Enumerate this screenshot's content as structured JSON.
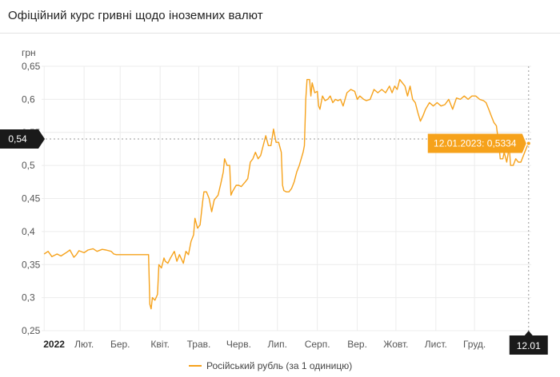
{
  "header": {
    "title": "Офіційний курс гривні щодо іноземних валют"
  },
  "colors": {
    "series": "#f6a21b",
    "tooltip_bg": "#f6a21b",
    "flag_bg": "#1a1a1a",
    "grid": "#ececec"
  },
  "chart_data": {
    "type": "line",
    "ylabel": "грн",
    "ylim": [
      0.25,
      0.65
    ],
    "yticks": [
      0.25,
      0.3,
      0.35,
      0.4,
      0.45,
      0.5,
      0.55,
      0.6,
      0.65
    ],
    "ytick_labels": [
      "0,25",
      "0,3",
      "0,35",
      "0,4",
      "0,45",
      "0,5",
      "0,55",
      "0,6",
      "0,65"
    ],
    "xlim": [
      "2021-12-30",
      "2023-01-14"
    ],
    "xticks": [
      "2022-01-01",
      "2022-02-01",
      "2022-03-01",
      "2022-04-01",
      "2022-05-01",
      "2022-06-01",
      "2022-07-01",
      "2022-08-01",
      "2022-09-01",
      "2022-10-01",
      "2022-11-01",
      "2022-12-01"
    ],
    "xtick_labels": [
      "2022",
      "Лют.",
      "Бер.",
      "Квіт.",
      "Трав.",
      "Черв.",
      "Лип.",
      "Серп.",
      "Вер.",
      "Жовт.",
      "Лист.",
      "Груд."
    ],
    "grid": true,
    "legend": "bottom",
    "series": [
      {
        "name": "Російський рубль (за 1 одиницю)",
        "color": "#f6a21b",
        "points": [
          [
            "2022-01-01",
            0.366
          ],
          [
            "2022-01-04",
            0.37
          ],
          [
            "2022-01-07",
            0.362
          ],
          [
            "2022-01-11",
            0.366
          ],
          [
            "2022-01-14",
            0.363
          ],
          [
            "2022-01-18",
            0.368
          ],
          [
            "2022-01-21",
            0.372
          ],
          [
            "2022-01-24",
            0.361
          ],
          [
            "2022-01-26",
            0.365
          ],
          [
            "2022-01-28",
            0.371
          ],
          [
            "2022-02-01",
            0.368
          ],
          [
            "2022-02-04",
            0.372
          ],
          [
            "2022-02-08",
            0.374
          ],
          [
            "2022-02-11",
            0.37
          ],
          [
            "2022-02-15",
            0.373
          ],
          [
            "2022-02-18",
            0.372
          ],
          [
            "2022-02-22",
            0.37
          ],
          [
            "2022-02-24",
            0.366
          ],
          [
            "2022-02-26",
            0.365
          ],
          [
            "2022-03-01",
            0.365
          ],
          [
            "2022-03-10",
            0.365
          ],
          [
            "2022-03-20",
            0.365
          ],
          [
            "2022-03-23",
            0.365
          ],
          [
            "2022-03-24",
            0.29
          ],
          [
            "2022-03-25",
            0.283
          ],
          [
            "2022-03-26",
            0.3
          ],
          [
            "2022-03-28",
            0.296
          ],
          [
            "2022-03-30",
            0.305
          ],
          [
            "2022-03-31",
            0.35
          ],
          [
            "2022-04-02",
            0.345
          ],
          [
            "2022-04-04",
            0.36
          ],
          [
            "2022-04-05",
            0.355
          ],
          [
            "2022-04-07",
            0.352
          ],
          [
            "2022-04-09",
            0.36
          ],
          [
            "2022-04-12",
            0.37
          ],
          [
            "2022-04-14",
            0.355
          ],
          [
            "2022-04-16",
            0.365
          ],
          [
            "2022-04-19",
            0.352
          ],
          [
            "2022-04-21",
            0.37
          ],
          [
            "2022-04-23",
            0.365
          ],
          [
            "2022-04-25",
            0.385
          ],
          [
            "2022-04-27",
            0.395
          ],
          [
            "2022-04-28",
            0.42
          ],
          [
            "2022-04-30",
            0.405
          ],
          [
            "2022-05-02",
            0.41
          ],
          [
            "2022-05-04",
            0.445
          ],
          [
            "2022-05-05",
            0.46
          ],
          [
            "2022-05-07",
            0.46
          ],
          [
            "2022-05-09",
            0.45
          ],
          [
            "2022-05-11",
            0.43
          ],
          [
            "2022-05-13",
            0.448
          ],
          [
            "2022-05-16",
            0.455
          ],
          [
            "2022-05-18",
            0.472
          ],
          [
            "2022-05-20",
            0.49
          ],
          [
            "2022-05-21",
            0.51
          ],
          [
            "2022-05-23",
            0.5
          ],
          [
            "2022-05-25",
            0.5
          ],
          [
            "2022-05-26",
            0.455
          ],
          [
            "2022-05-27",
            0.46
          ],
          [
            "2022-05-30",
            0.47
          ],
          [
            "2022-06-01",
            0.47
          ],
          [
            "2022-06-03",
            0.468
          ],
          [
            "2022-06-06",
            0.475
          ],
          [
            "2022-06-08",
            0.48
          ],
          [
            "2022-06-10",
            0.505
          ],
          [
            "2022-06-12",
            0.51
          ],
          [
            "2022-06-14",
            0.52
          ],
          [
            "2022-06-16",
            0.51
          ],
          [
            "2022-06-18",
            0.515
          ],
          [
            "2022-06-20",
            0.53
          ],
          [
            "2022-06-22",
            0.545
          ],
          [
            "2022-06-24",
            0.53
          ],
          [
            "2022-06-26",
            0.53
          ],
          [
            "2022-06-28",
            0.555
          ],
          [
            "2022-06-30",
            0.535
          ],
          [
            "2022-07-02",
            0.535
          ],
          [
            "2022-07-04",
            0.52
          ],
          [
            "2022-07-05",
            0.47
          ],
          [
            "2022-07-06",
            0.462
          ],
          [
            "2022-07-08",
            0.46
          ],
          [
            "2022-07-10",
            0.46
          ],
          [
            "2022-07-12",
            0.465
          ],
          [
            "2022-07-14",
            0.475
          ],
          [
            "2022-07-16",
            0.49
          ],
          [
            "2022-07-18",
            0.5
          ],
          [
            "2022-07-21",
            0.52
          ],
          [
            "2022-07-22",
            0.53
          ],
          [
            "2022-07-23",
            0.6
          ],
          [
            "2022-07-24",
            0.63
          ],
          [
            "2022-07-26",
            0.63
          ],
          [
            "2022-07-27",
            0.605
          ],
          [
            "2022-07-28",
            0.625
          ],
          [
            "2022-07-30",
            0.61
          ],
          [
            "2022-08-01",
            0.612
          ],
          [
            "2022-08-02",
            0.59
          ],
          [
            "2022-08-03",
            0.585
          ],
          [
            "2022-08-05",
            0.605
          ],
          [
            "2022-08-07",
            0.598
          ],
          [
            "2022-08-09",
            0.6
          ],
          [
            "2022-08-11",
            0.605
          ],
          [
            "2022-08-13",
            0.595
          ],
          [
            "2022-08-15",
            0.6
          ],
          [
            "2022-08-17",
            0.598
          ],
          [
            "2022-08-19",
            0.6
          ],
          [
            "2022-08-21",
            0.59
          ],
          [
            "2022-08-24",
            0.61
          ],
          [
            "2022-08-27",
            0.615
          ],
          [
            "2022-08-30",
            0.612
          ],
          [
            "2022-09-01",
            0.6
          ],
          [
            "2022-09-03",
            0.605
          ],
          [
            "2022-09-06",
            0.6
          ],
          [
            "2022-09-08",
            0.598
          ],
          [
            "2022-09-11",
            0.6
          ],
          [
            "2022-09-14",
            0.615
          ],
          [
            "2022-09-17",
            0.61
          ],
          [
            "2022-09-20",
            0.615
          ],
          [
            "2022-09-23",
            0.61
          ],
          [
            "2022-09-26",
            0.62
          ],
          [
            "2022-09-28",
            0.61
          ],
          [
            "2022-09-30",
            0.62
          ],
          [
            "2022-10-02",
            0.615
          ],
          [
            "2022-10-04",
            0.63
          ],
          [
            "2022-10-06",
            0.625
          ],
          [
            "2022-10-08",
            0.62
          ],
          [
            "2022-10-10",
            0.605
          ],
          [
            "2022-10-12",
            0.62
          ],
          [
            "2022-10-14",
            0.6
          ],
          [
            "2022-10-16",
            0.595
          ],
          [
            "2022-10-18",
            0.58
          ],
          [
            "2022-10-20",
            0.567
          ],
          [
            "2022-10-22",
            0.575
          ],
          [
            "2022-10-24",
            0.585
          ],
          [
            "2022-10-27",
            0.595
          ],
          [
            "2022-10-30",
            0.59
          ],
          [
            "2022-11-02",
            0.595
          ],
          [
            "2022-11-05",
            0.59
          ],
          [
            "2022-11-08",
            0.592
          ],
          [
            "2022-11-11",
            0.6
          ],
          [
            "2022-11-14",
            0.585
          ],
          [
            "2022-11-17",
            0.602
          ],
          [
            "2022-11-20",
            0.6
          ],
          [
            "2022-11-23",
            0.605
          ],
          [
            "2022-11-26",
            0.6
          ],
          [
            "2022-11-29",
            0.605
          ],
          [
            "2022-12-02",
            0.605
          ],
          [
            "2022-12-05",
            0.6
          ],
          [
            "2022-12-08",
            0.598
          ],
          [
            "2022-12-10",
            0.595
          ],
          [
            "2022-12-12",
            0.585
          ],
          [
            "2022-12-14",
            0.575
          ],
          [
            "2022-12-16",
            0.565
          ],
          [
            "2022-12-18",
            0.56
          ],
          [
            "2022-12-20",
            0.53
          ],
          [
            "2022-12-21",
            0.51
          ],
          [
            "2022-12-23",
            0.51
          ],
          [
            "2022-12-24",
            0.52
          ],
          [
            "2022-12-26",
            0.505
          ],
          [
            "2022-12-28",
            0.528
          ],
          [
            "2022-12-29",
            0.5
          ],
          [
            "2022-12-31",
            0.5
          ],
          [
            "2023-01-02",
            0.51
          ],
          [
            "2023-01-04",
            0.505
          ],
          [
            "2023-01-06",
            0.505
          ],
          [
            "2023-01-09",
            0.52
          ],
          [
            "2023-01-11",
            0.53
          ],
          [
            "2023-01-12",
            0.5334
          ]
        ]
      }
    ],
    "crosshair": {
      "x": "2023-01-12",
      "y_label": "0,54",
      "x_label": "12.01"
    },
    "tooltip": {
      "text": "12.01.2023: 0,5334",
      "x": "2023-01-12",
      "y": 0.5334
    }
  }
}
